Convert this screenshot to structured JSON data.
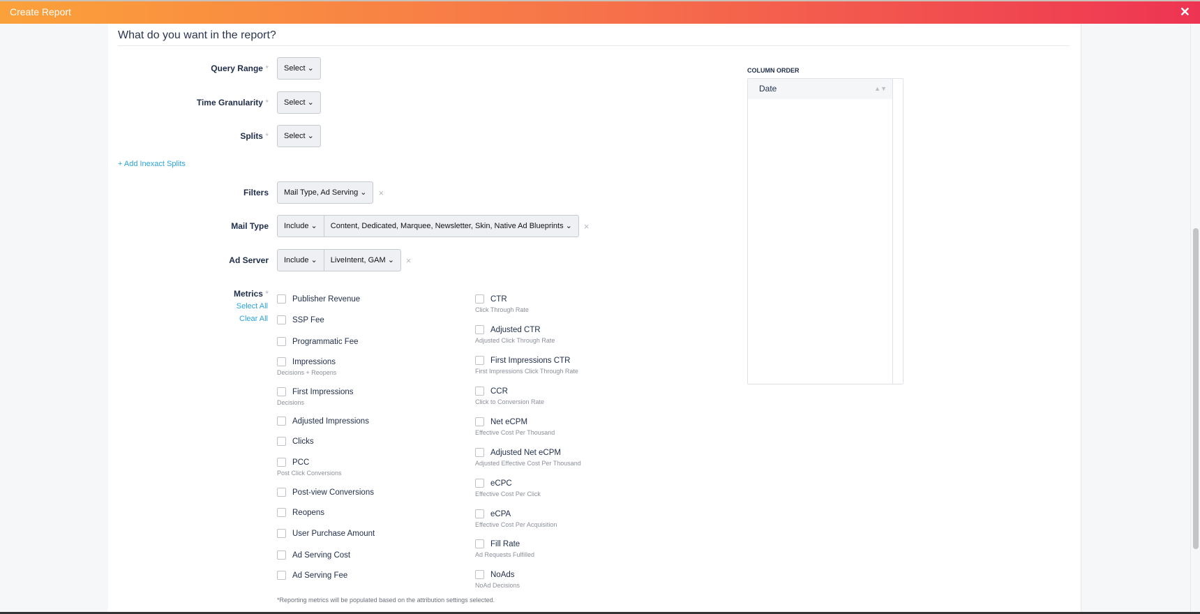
{
  "header": {
    "title": "Create Report",
    "close_icon": "close-icon"
  },
  "form": {
    "title": "What do you want in the report?",
    "query_range": {
      "label": "Query Range",
      "required": "*",
      "value": "Select"
    },
    "time_granularity": {
      "label": "Time Granularity",
      "required": "*",
      "value": "Select"
    },
    "splits": {
      "label": "Splits",
      "required": "*",
      "value": "Select"
    },
    "add_inexact_splits": "+ Add Inexact Splits",
    "filters": {
      "label": "Filters",
      "value": "Mail Type, Ad Serving"
    },
    "mail_type": {
      "label": "Mail Type",
      "mode": "Include",
      "value": "Content, Dedicated, Marquee, Newsletter, Skin, Native Ad Blueprints"
    },
    "ad_server": {
      "label": "Ad Server",
      "mode": "Include",
      "value": "LiveIntent, GAM"
    },
    "metrics": {
      "label": "Metrics",
      "required": "*",
      "select_all": "Select All",
      "clear_all": "Clear All",
      "col1": [
        {
          "label": "Publisher Revenue"
        },
        {
          "label": "SSP Fee"
        },
        {
          "label": "Programmatic Fee"
        },
        {
          "label": "Impressions",
          "sub": "Decisions + Reopens"
        },
        {
          "label": "First Impressions",
          "sub": "Decisions"
        },
        {
          "label": "Adjusted Impressions"
        },
        {
          "label": "Clicks"
        },
        {
          "label": "PCC",
          "sub": "Post Click Conversions"
        },
        {
          "label": "Post-view Conversions"
        },
        {
          "label": "Reopens"
        },
        {
          "label": "User Purchase Amount"
        },
        {
          "label": "Ad Serving Cost"
        },
        {
          "label": "Ad Serving Fee"
        }
      ],
      "col2": [
        {
          "label": "CTR",
          "sub": "Click Through Rate"
        },
        {
          "label": "Adjusted CTR",
          "sub": "Adjusted Click Through Rate"
        },
        {
          "label": "First Impressions CTR",
          "sub": "First Impressions Click Through Rate"
        },
        {
          "label": "CCR",
          "sub": "Click to Conversion Rate"
        },
        {
          "label": "Net eCPM",
          "sub": "Effective Cost Per Thousand"
        },
        {
          "label": "Adjusted Net eCPM",
          "sub": "Adjusted Effective Cost Per Thousand"
        },
        {
          "label": "eCPC",
          "sub": "Effective Cost Per Click"
        },
        {
          "label": "eCPA",
          "sub": "Effective Cost Per Acquisition"
        },
        {
          "label": "Fill Rate",
          "sub": "Ad Requests Fulfilled"
        },
        {
          "label": "NoAds",
          "sub": "NoAd Decisions"
        }
      ],
      "note": "*Reporting metrics will be populated based on the attribution settings selected."
    }
  },
  "column_order": {
    "title": "COLUMN ORDER",
    "items": [
      "Date"
    ]
  },
  "colors": {
    "gradient_start": "#fba13a",
    "gradient_end": "#ee3453",
    "link": "#2aa3df"
  }
}
